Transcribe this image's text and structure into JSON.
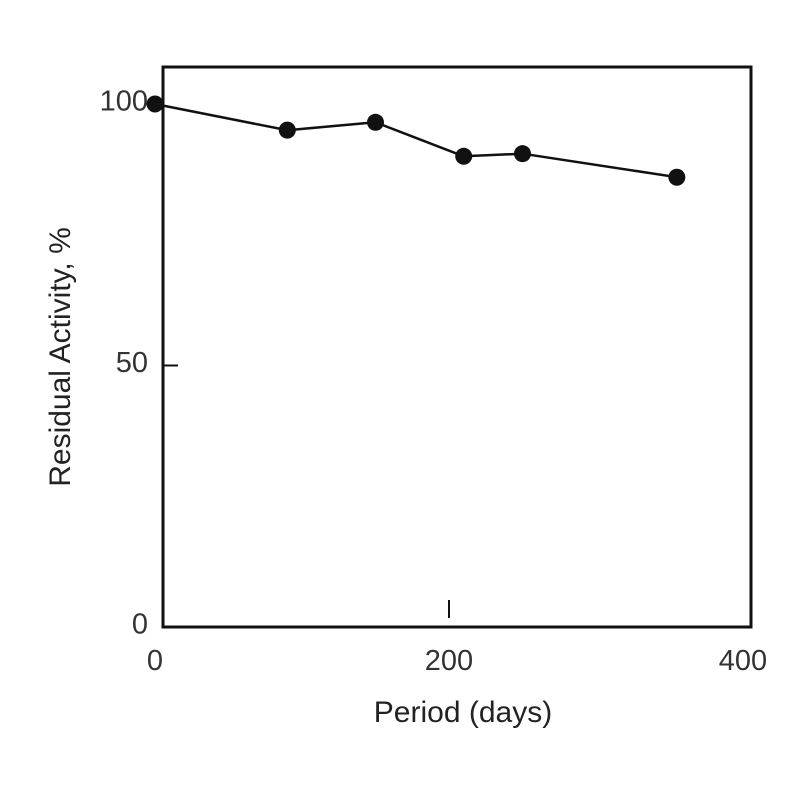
{
  "chart_data": {
    "type": "line",
    "title": "",
    "xlabel": "Period (days)",
    "ylabel": "Residual Activity, %",
    "xlim": [
      0,
      400
    ],
    "ylim": [
      0,
      100
    ],
    "x_ticks": [
      {
        "value": 0,
        "label": "0"
      },
      {
        "value": 200,
        "label": "200"
      },
      {
        "value": 400,
        "label": "400"
      }
    ],
    "y_ticks": [
      {
        "value": 0,
        "label": "0"
      },
      {
        "value": 50,
        "label": "50"
      },
      {
        "value": 100,
        "label": "100"
      }
    ],
    "grid": false,
    "legend": "none",
    "series": [
      {
        "color": "#111111",
        "x": [
          0,
          90,
          150,
          210,
          250,
          355
        ],
        "y": [
          100,
          95,
          96.5,
          90,
          90.5,
          86
        ]
      }
    ]
  }
}
